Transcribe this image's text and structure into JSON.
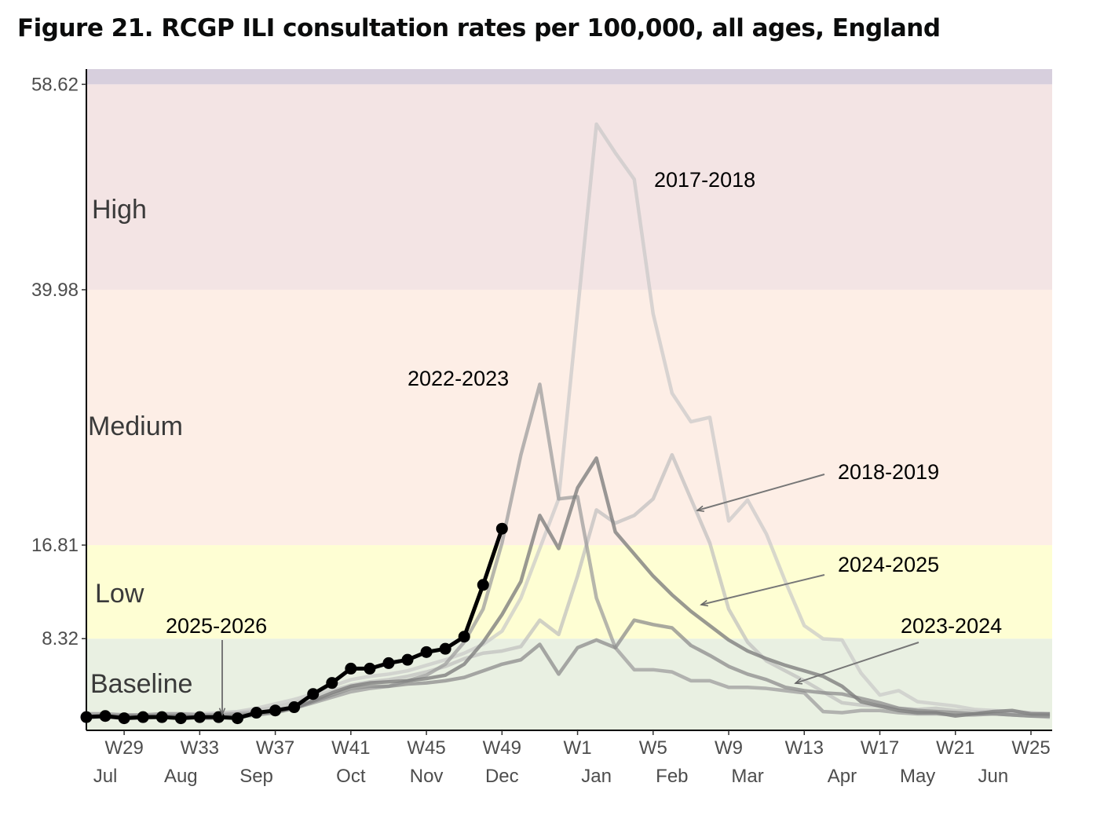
{
  "chart_data": {
    "type": "line",
    "title": "Figure 21. RCGP ILI consultation rates per 100,000, all ages, England",
    "xlabel": "",
    "ylabel": "",
    "ylim": [
      0,
      60
    ],
    "yticks": [
      58.62,
      39.98,
      16.81,
      8.32
    ],
    "weeks": [
      "W27",
      "W28",
      "W29",
      "W30",
      "W31",
      "W32",
      "W33",
      "W34",
      "W35",
      "W36",
      "W37",
      "W38",
      "W39",
      "W40",
      "W41",
      "W42",
      "W43",
      "W44",
      "W45",
      "W46",
      "W47",
      "W48",
      "W49",
      "W50",
      "W51",
      "W52",
      "W1",
      "W2",
      "W3",
      "W4",
      "W5",
      "W6",
      "W7",
      "W8",
      "W9",
      "W10",
      "W11",
      "W12",
      "W13",
      "W14",
      "W15",
      "W16",
      "W17",
      "W18",
      "W19",
      "W20",
      "W21",
      "W22",
      "W23",
      "W24",
      "W25",
      "W26"
    ],
    "xtick_labels": [
      {
        "week_index": 2,
        "week": "W29",
        "month": "Jul"
      },
      {
        "week_index": 6,
        "week": "W33",
        "month": "Aug"
      },
      {
        "week_index": 10,
        "week": "W37",
        "month": "Sep"
      },
      {
        "week_index": 14,
        "week": "W41",
        "month": "Oct"
      },
      {
        "week_index": 18,
        "week": "W45",
        "month": "Nov"
      },
      {
        "week_index": 22,
        "week": "W49",
        "month": "Dec"
      },
      {
        "week_index": 26,
        "week": "W1",
        "month": "Jan"
      },
      {
        "week_index": 30,
        "week": "W5",
        "month": "Feb"
      },
      {
        "week_index": 34,
        "week": "W9",
        "month": "Mar"
      },
      {
        "week_index": 38,
        "week": "W13",
        "month": "Apr"
      },
      {
        "week_index": 42,
        "week": "W17",
        "month": "May"
      },
      {
        "week_index": 46,
        "week": "W21",
        "month": "Jun"
      },
      {
        "week_index": 50,
        "week": "W25",
        "month": ""
      }
    ],
    "thresholds": [
      {
        "name": "Baseline",
        "from": 0,
        "to": 8.32,
        "color": "#e9f0e2"
      },
      {
        "name": "Low",
        "from": 8.32,
        "to": 16.81,
        "color": "#fefed3"
      },
      {
        "name": "Medium",
        "from": 16.81,
        "to": 39.98,
        "color": "#fdeee6"
      },
      {
        "name": "High",
        "from": 39.98,
        "to": 58.62,
        "color": "#f3e4e4"
      },
      {
        "name": "",
        "from": 58.62,
        "to": 60,
        "color": "#d7cfdd"
      }
    ],
    "series": [
      {
        "name": "2017-2018",
        "color": "#c8c8c8",
        "opacity": 0.7,
        "values": [
          1.2,
          1.3,
          1.3,
          1.4,
          1.4,
          1.5,
          1.5,
          1.6,
          1.7,
          2.0,
          2.4,
          2.8,
          3.3,
          4.0,
          4.6,
          4.9,
          5.1,
          5.4,
          5.9,
          6.4,
          7.0,
          7.8,
          9.0,
          12.0,
          16.5,
          21.0,
          38.0,
          55.0,
          52.4,
          50.0,
          37.8,
          30.6,
          28.0,
          28.4,
          19.0,
          20.9,
          17.8,
          13.5,
          9.5,
          8.3,
          8.2,
          5.2,
          3.2,
          3.6,
          2.6,
          2.4,
          2.2,
          1.9,
          1.8,
          1.7,
          1.6,
          1.5
        ]
      },
      {
        "name": "2018-2019",
        "color": "#bdbdbd",
        "opacity": 0.7,
        "values": [
          1.5,
          1.5,
          1.4,
          1.4,
          1.5,
          1.5,
          1.4,
          1.5,
          1.6,
          1.8,
          2.1,
          2.5,
          3.0,
          3.6,
          4.1,
          4.4,
          4.6,
          4.9,
          5.3,
          5.8,
          6.5,
          7.0,
          7.2,
          7.6,
          10.0,
          8.7,
          14.0,
          20.0,
          18.8,
          19.5,
          21.0,
          25.0,
          21.0,
          17.0,
          11.0,
          8.0,
          6.3,
          5.4,
          4.5,
          3.5,
          2.5,
          2.3,
          2.2,
          2.0,
          1.9,
          2.0,
          1.8,
          1.7,
          1.6,
          1.6,
          1.5,
          1.4
        ]
      },
      {
        "name": "2022-2023",
        "color": "#9e9e9e",
        "opacity": 0.75,
        "values": [
          1.5,
          1.5,
          1.4,
          1.4,
          1.5,
          1.5,
          1.4,
          1.4,
          1.5,
          1.6,
          1.8,
          2.0,
          2.5,
          3.0,
          3.5,
          3.8,
          4.0,
          4.5,
          5.0,
          6.0,
          8.0,
          11.0,
          17.0,
          25.0,
          31.4,
          21.0,
          21.2,
          12.0,
          7.5,
          5.5,
          5.5,
          5.3,
          4.5,
          4.5,
          3.9,
          3.9,
          3.8,
          3.6,
          3.4,
          1.7,
          1.6,
          1.8,
          1.8,
          1.6,
          1.5,
          1.5,
          1.4,
          1.4,
          1.5,
          1.4,
          1.3,
          1.2
        ]
      },
      {
        "name": "2023-2024",
        "color": "#8c8c8c",
        "opacity": 0.75,
        "values": [
          1.2,
          1.2,
          1.1,
          1.1,
          1.2,
          1.2,
          1.1,
          1.1,
          1.2,
          1.4,
          1.6,
          2.0,
          2.6,
          3.2,
          3.8,
          4.0,
          4.0,
          4.2,
          4.3,
          4.5,
          4.8,
          5.4,
          6.0,
          6.4,
          7.8,
          5.1,
          7.5,
          8.2,
          7.5,
          10.0,
          9.6,
          9.3,
          7.7,
          6.8,
          5.8,
          5.1,
          4.6,
          3.9,
          3.6,
          3.4,
          3.3,
          2.9,
          2.5,
          2.0,
          1.8,
          1.7,
          1.6,
          1.5,
          1.5,
          1.4,
          1.3,
          1.3
        ]
      },
      {
        "name": "2024-2025",
        "color": "#808080",
        "opacity": 0.8,
        "values": [
          1.3,
          1.3,
          1.3,
          1.3,
          1.3,
          1.3,
          1.2,
          1.2,
          1.3,
          1.5,
          1.7,
          2.0,
          2.7,
          3.4,
          4.0,
          4.3,
          4.4,
          4.5,
          4.7,
          5.0,
          6.0,
          8.0,
          10.5,
          13.5,
          19.5,
          16.5,
          22.0,
          24.7,
          18.0,
          16.0,
          14.0,
          12.3,
          10.8,
          9.5,
          8.2,
          7.2,
          6.5,
          5.9,
          5.4,
          4.9,
          4.0,
          2.6,
          2.2,
          1.8,
          1.6,
          1.6,
          1.3,
          1.5,
          1.7,
          1.8,
          1.5,
          1.5
        ]
      },
      {
        "name": "2025-2026",
        "color": "#000000",
        "opacity": 1,
        "markers": true,
        "values": [
          1.2,
          1.3,
          1.1,
          1.2,
          1.2,
          1.1,
          1.2,
          1.2,
          1.1,
          1.6,
          1.8,
          2.1,
          3.3,
          4.3,
          5.6,
          5.6,
          6.1,
          6.4,
          7.1,
          7.4,
          8.5,
          13.2,
          18.3
        ]
      }
    ],
    "annotations": [
      "2017-2018",
      "2018-2019",
      "2022-2023",
      "2023-2024",
      "2024-2025",
      "2025-2026"
    ]
  }
}
